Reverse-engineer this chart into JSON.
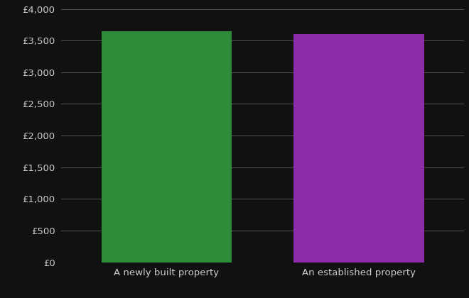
{
  "categories": [
    "A newly built property",
    "An established property"
  ],
  "values": [
    3650,
    3600
  ],
  "bar_colors": [
    "#2e8b3a",
    "#8b2da8"
  ],
  "background_color": "#111111",
  "text_color": "#cccccc",
  "grid_color": "#555555",
  "ylim": [
    0,
    4000
  ],
  "ytick_step": 500,
  "bar_width": 0.68
}
